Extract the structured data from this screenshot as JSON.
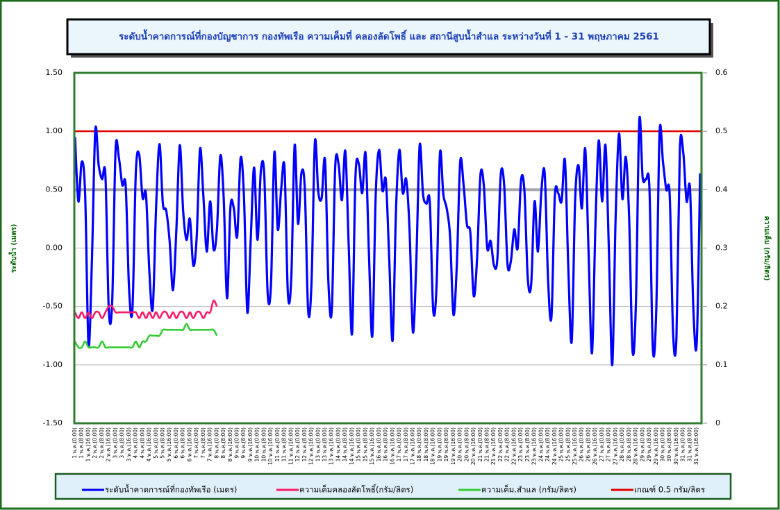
{
  "chart_data": {
    "type": "line",
    "title": "ระดับน้ำคาดการณ์ที่กองบัญชาการ กองทัพเรือ ความเค็มที่ คลองลัดโพธิ์ และ สถานีสูบน้ำสำแล ระหว่างวันที่  1 - 31 พฤษภาคม 2561",
    "ylabel": "ระดับน้ำ (เมตร)",
    "y2label": "ความเค็ม (กรัม/ลิตร)",
    "ylim": [
      -1.5,
      1.5
    ],
    "yticks": [
      {
        "value": -1.5,
        "label": "-1.50"
      },
      {
        "value": -1,
        "label": "-1.00"
      },
      {
        "value": -0.5,
        "label": "-0.50"
      },
      {
        "value": 0,
        "label": "0.00"
      },
      {
        "value": 0.5,
        "label": "0.50"
      },
      {
        "value": 1,
        "label": "1.00"
      },
      {
        "value": 1.5,
        "label": "1.50"
      }
    ],
    "y2lim": [
      0,
      0.6
    ],
    "y2ticks": [
      0,
      0.1,
      0.2,
      0.3,
      0.4,
      0.5,
      0.6
    ],
    "grid": true,
    "reference_line": {
      "value": 0.5,
      "color": "#a6a6a6"
    },
    "categories": [
      "1 พ.ค.(0:00)",
      null,
      "1 พ.ค.(8:00)",
      null,
      "1 พ.ค.(16:00)",
      null,
      "2 พ.ค.(0:00)",
      null,
      "2 พ.ค.(8:00)",
      null,
      "2 พ.ค.(16:00)",
      null,
      "3 พ.ค.(0:00)",
      null,
      "3 พ.ค.(8:00)",
      null,
      "3 พ.ค.(16:00)",
      null,
      "4 พ.ค.(0:00)",
      null,
      "4 พ.ค.(8:00)",
      null,
      "4 พ.ค.(16:00)",
      null,
      "5 พ.ค.(0:00)",
      null,
      "5 พ.ค.(8:00)",
      null,
      "5 พ.ค.(16:00)",
      null,
      "6 พ.ค.(0:00)",
      null,
      "6 พ.ค.(8:00)",
      null,
      "6 พ.ค.(16:00)",
      null,
      "7 พ.ค.(0:00)",
      null,
      "7 พ.ค.(8:00)",
      null,
      "7 พ.ค.(16:00)",
      null,
      "8 พ.ค.(0:00)",
      null,
      "8 พ.ค.(8:00)",
      null,
      "8 พ.ค.(16:00)",
      null,
      "9 พ.ค.(0:00)",
      null,
      "9 พ.ค.(8:00)",
      null,
      "9 พ.ค.(16:00)",
      null,
      "10 พ.ค.(0:00)",
      null,
      "10 พ.ค.(8:00)",
      null,
      "10 พ.ค.(16:00)",
      null,
      "11 พ.ค.(0:00)",
      null,
      "11 พ.ค.(8:00)",
      null,
      "11 พ.ค.(16:00)",
      null,
      "12 พ.ค.(0:00)",
      null,
      "12 พ.ค.(8:00)",
      null,
      "12 พ.ค.(16:00)",
      null,
      "13 พ.ค.(0:00)",
      null,
      "13 พ.ค.(8:00)",
      null,
      "13 พ.ค.(16:00)",
      null,
      "14 พ.ค.(0:00)",
      null,
      "14 พ.ค.(8:00)",
      null,
      "14 พ.ค.(16:00)",
      null,
      "15 พ.ค.(0:00)",
      null,
      "15 พ.ค.(8:00)",
      null,
      "15 พ.ค.(16:00)",
      null,
      "16 พ.ค.(0:00)",
      null,
      "16 พ.ค.(8:00)",
      null,
      "16 พ.ค.(16:00)",
      null,
      "17 พ.ค.(0:00)",
      null,
      "17 พ.ค.(8:00)",
      null,
      "17 พ.ค.(16:00)",
      null,
      "18 พ.ค.(0:00)",
      null,
      "18 พ.ค.(8:00)",
      null,
      "18 พ.ค.(16:00)",
      null,
      "19 พ.ค.(0:00)",
      null,
      "19 พ.ค.(8:00)",
      null,
      "19 พ.ค.(16:00)",
      null,
      "20 พ.ค.(0:00)",
      null,
      "20 พ.ค.(8:00)",
      null,
      "20 พ.ค.(16:00)",
      null,
      "21 พ.ค.(0:00)",
      null,
      "21 พ.ค.(8:00)",
      null,
      "21 พ.ค.(16:00)",
      null,
      "22 พ.ค.(0:00)",
      null,
      "22 พ.ค.(8:00)",
      null,
      "22 พ.ค.(16:00)",
      null,
      "23 พ.ค.(0:00)",
      null,
      "23 พ.ค.(8:00)",
      null,
      "23 พ.ค.(16:00)",
      null,
      "24 พ.ค.(0:00)",
      null,
      "24 พ.ค.(8:00)",
      null,
      "24 พ.ค.(16:00)",
      null,
      "25 พ.ค.(0:00)",
      null,
      "25 พ.ค.(8:00)",
      null,
      "25 พ.ค.(16:00)",
      null,
      "26 พ.ค.(0:00)",
      null,
      "26 พ.ค.(8:00)",
      null,
      "26 พ.ค.(16:00)",
      null,
      "27 พ.ค.(0:00)",
      null,
      "27 พ.ค.(8:00)",
      null,
      "27 พ.ค.(16:00)",
      null,
      "28 พ.ค.(0:00)",
      null,
      "28 พ.ค.(8:00)",
      null,
      "28 พ.ค.(16:00)",
      null,
      "29 พ.ค.(0:00)",
      null,
      "29 พ.ค.(8:00)",
      null,
      "29 พ.ค.(16:00)",
      null,
      "30 พ.ค.(0:00)",
      null,
      "30 พ.ค.(8:00)",
      null,
      "30 พ.ค.(16:00)",
      null,
      "31 พ.ค.(0:00)",
      null,
      "31 พ.ค.(8:00)",
      null,
      "31 พ.ค.(16:00)",
      null
    ],
    "series": [
      {
        "name": "ระดับน้ำคาดการณ์ที่กองทัพเรือ (เมตร)",
        "color": "#0000ff",
        "values": [
          0.95,
          0.4,
          0.74,
          0.46,
          -0.83,
          -0.11,
          1.01,
          0.71,
          0.59,
          0.62,
          -0.53,
          -0.46,
          0.84,
          0.77,
          0.54,
          0.53,
          -0.35,
          -0.52,
          0.65,
          0.8,
          0.43,
          0.46,
          -0.2,
          -0.52,
          0.35,
          0.89,
          0.38,
          0.32,
          0.06,
          -0.36,
          0.16,
          0.88,
          0.32,
          0.07,
          0.25,
          -0.15,
          0.09,
          0.85,
          0.44,
          -0.03,
          0.4,
          -0.01,
          0.16,
          0.79,
          0.43,
          -0.43,
          0.35,
          0.34,
          0.1,
          0.77,
          0.44,
          -0.55,
          0.07,
          0.69,
          0.07,
          0.66,
          0.63,
          -0.38,
          -0.31,
          0.82,
          0.16,
          0.5,
          0.69,
          -0.39,
          -0.26,
          0.88,
          0.21,
          0.64,
          0.51,
          -0.54,
          -0.29,
          0.91,
          0.48,
          0.43,
          0.75,
          -0.3,
          -0.53,
          0.69,
          0.72,
          0.41,
          0.83,
          0.02,
          -0.73,
          0.61,
          0.72,
          0.47,
          0.81,
          -0.06,
          -0.75,
          0.46,
          0.84,
          0.49,
          0.58,
          -0.1,
          -0.79,
          0.33,
          0.84,
          0.47,
          0.59,
          0.16,
          -0.72,
          -0.12,
          0.88,
          0.46,
          0.38,
          0.39,
          -0.53,
          -0.32,
          0.81,
          0.46,
          0.34,
          0.1,
          -0.57,
          -0.14,
          0.74,
          0.54,
          0.2,
          0.13,
          -0.41,
          -0.08,
          0.63,
          0.53,
          0.0,
          0.06,
          -0.15,
          -0.09,
          0.63,
          0.54,
          -0.14,
          -0.11,
          0.16,
          0.0,
          0.58,
          0.49,
          -0.26,
          -0.31,
          0.4,
          -0.03,
          0.48,
          0.64,
          -0.27,
          -0.59,
          0.44,
          0.47,
          0.4,
          0.75,
          -0.18,
          -0.8,
          0.4,
          0.71,
          0.34,
          0.85,
          -0.05,
          -0.9,
          0.18,
          0.92,
          0.4,
          0.88,
          -0.02,
          -1.0,
          0.27,
          0.98,
          0.42,
          0.78,
          0.25,
          -0.88,
          -0.47,
          1.09,
          0.6,
          0.59,
          0.51,
          -0.86,
          -0.55,
          0.99,
          0.74,
          0.5,
          0.45,
          -0.73,
          -0.76,
          0.84,
          0.82,
          0.4,
          0.51,
          -0.52,
          -0.81,
          0.64
        ]
      },
      {
        "name": "ความเค็มคลองลัดโพธิ์(กรัม/ลิตร)",
        "color": "#ff1a66",
        "axis": "y2",
        "values": [
          0.19,
          0.18,
          0.19,
          0.18,
          0.19,
          0.18,
          0.19,
          0.19,
          0.18,
          0.19,
          0.2,
          0.2,
          0.19,
          0.19,
          0.19,
          0.19,
          0.19,
          0.19,
          0.19,
          0.18,
          0.19,
          0.18,
          0.19,
          0.18,
          0.19,
          0.18,
          0.19,
          0.19,
          0.18,
          0.19,
          0.18,
          0.19,
          0.19,
          0.18,
          0.19,
          0.18,
          0.19,
          0.19,
          0.18,
          0.19,
          0.19,
          0.21,
          0.2,
          null,
          null,
          null,
          null,
          null,
          null,
          null,
          null,
          null,
          null,
          null,
          null,
          null,
          null,
          null,
          null,
          null,
          null,
          null,
          null,
          null,
          null,
          null,
          null,
          null,
          null,
          null,
          null,
          null,
          null,
          null,
          null,
          null,
          null,
          null,
          null,
          null,
          null,
          null,
          null,
          null,
          null,
          null,
          null,
          null,
          null,
          null,
          null,
          null,
          null,
          null,
          null,
          null,
          null,
          null,
          null,
          null,
          null,
          null,
          null,
          null,
          null,
          null,
          null,
          null,
          null,
          null,
          null,
          null,
          null,
          null,
          null,
          null,
          null,
          null,
          null,
          null,
          null,
          null,
          null,
          null,
          null,
          null,
          null,
          null,
          null,
          null,
          null,
          null,
          null,
          null,
          null,
          null,
          null,
          null,
          null,
          null,
          null,
          null,
          null,
          null,
          null,
          null,
          null,
          null,
          null,
          null,
          null,
          null,
          null,
          null,
          null,
          null,
          null,
          null,
          null,
          null,
          null,
          null,
          null,
          null,
          null,
          null,
          null,
          null,
          null,
          null,
          null,
          null,
          null,
          null,
          null,
          null,
          null,
          null,
          null,
          null,
          null,
          null,
          null,
          null,
          null,
          null
        ]
      },
      {
        "name": "ความเค็ม.สำแล (กรัม/ลิตร)",
        "color": "#33cc33",
        "axis": "y2",
        "values": [
          0.14,
          0.13,
          0.13,
          0.14,
          0.13,
          0.13,
          0.13,
          0.13,
          0.14,
          0.13,
          0.13,
          0.13,
          0.13,
          0.13,
          0.13,
          0.13,
          0.13,
          0.13,
          0.14,
          0.13,
          0.14,
          0.14,
          0.15,
          0.15,
          0.15,
          0.15,
          0.16,
          0.16,
          0.16,
          0.16,
          0.16,
          0.16,
          0.16,
          0.17,
          0.16,
          0.16,
          0.16,
          0.16,
          0.16,
          0.16,
          0.16,
          0.16,
          0.15,
          null,
          null,
          null,
          null,
          null,
          null,
          null,
          null,
          null,
          null,
          null,
          null,
          null,
          null,
          null,
          null,
          null,
          null,
          null,
          null,
          null,
          null,
          null,
          null,
          null,
          null,
          null,
          null,
          null,
          null,
          null,
          null,
          null,
          null,
          null,
          null,
          null,
          null,
          null,
          null,
          null,
          null,
          null,
          null,
          null,
          null,
          null,
          null,
          null,
          null,
          null,
          null,
          null,
          null,
          null,
          null,
          null,
          null,
          null,
          null,
          null,
          null,
          null,
          null,
          null,
          null,
          null,
          null,
          null,
          null,
          null,
          null,
          null,
          null,
          null,
          null,
          null,
          null,
          null,
          null,
          null,
          null,
          null,
          null,
          null,
          null,
          null,
          null,
          null,
          null,
          null,
          null,
          null,
          null,
          null,
          null,
          null,
          null,
          null,
          null,
          null,
          null,
          null,
          null,
          null,
          null,
          null,
          null,
          null,
          null,
          null,
          null,
          null,
          null,
          null,
          null,
          null,
          null,
          null,
          null,
          null,
          null,
          null,
          null,
          null,
          null,
          null,
          null,
          null,
          null,
          null,
          null,
          null,
          null,
          null,
          null,
          null,
          null,
          null,
          null,
          null,
          null,
          null
        ]
      }
    ],
    "threshold": {
      "name": "เกณฑ์ 0.5 กรัม/ลิตร",
      "color": "#e00000",
      "axis": "y2",
      "value": 0.5
    }
  }
}
